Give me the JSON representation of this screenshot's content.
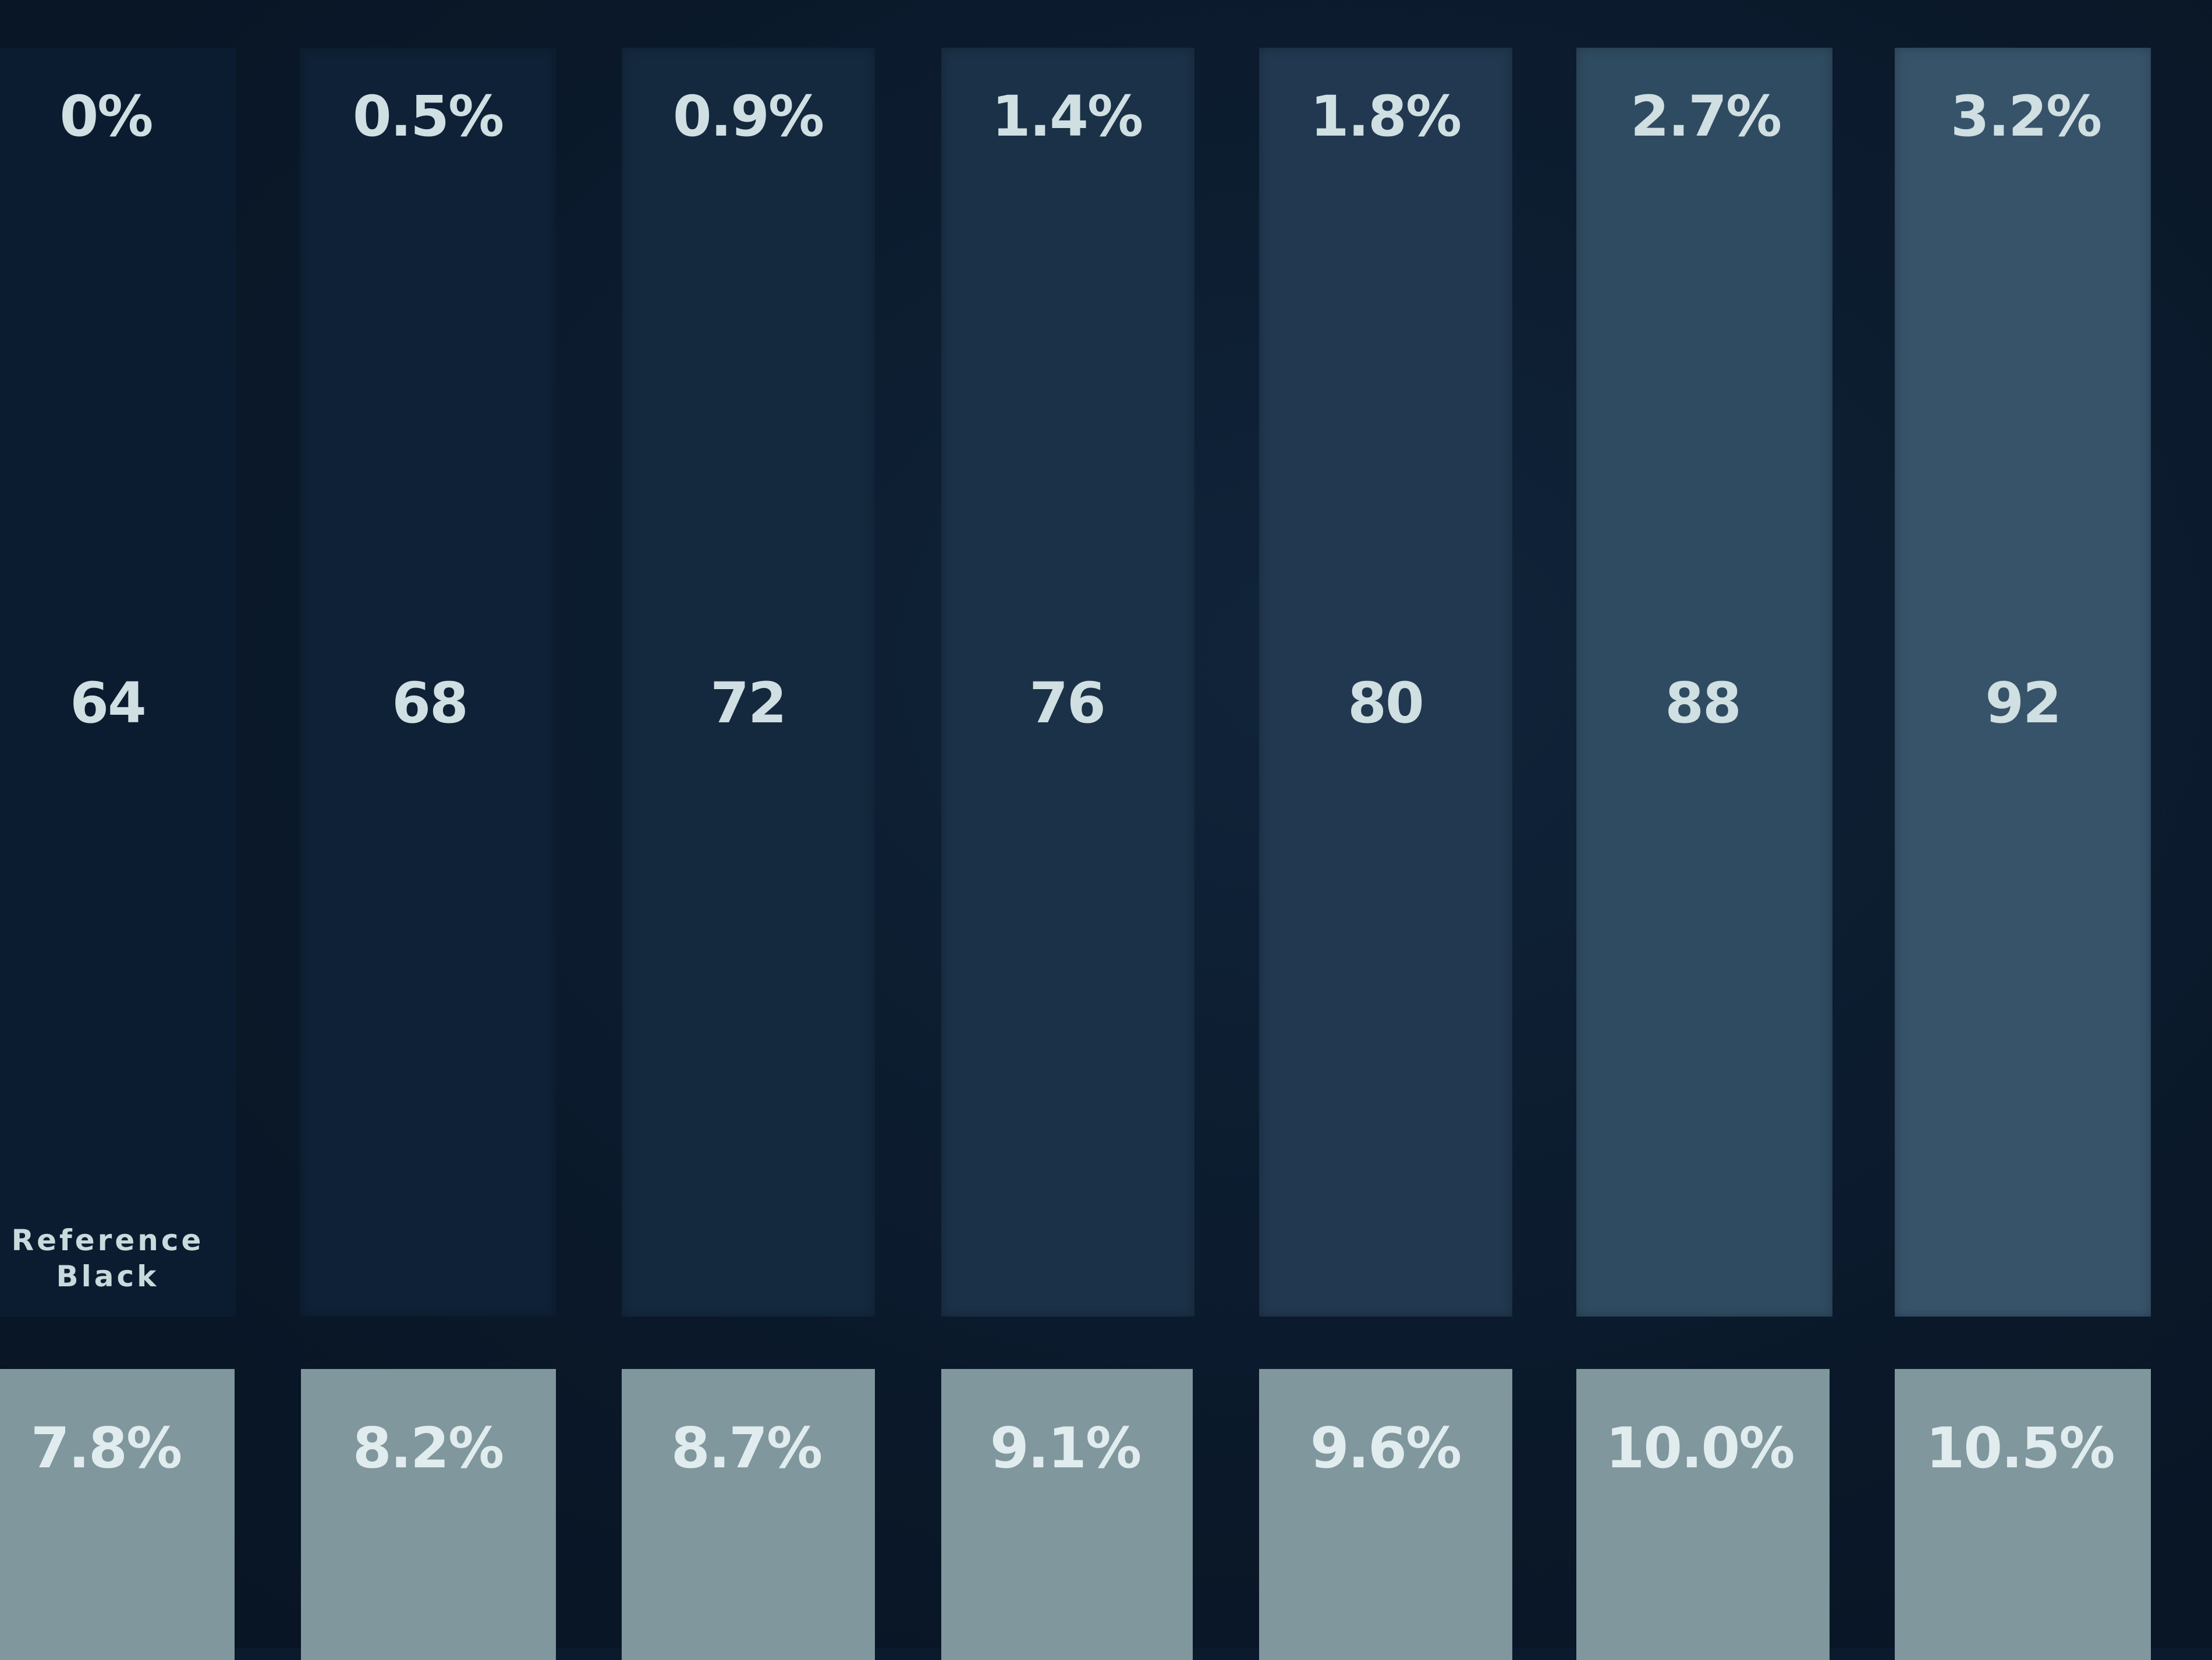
{
  "columns": [
    {
      "top": "0%",
      "mid": "64",
      "bottom": "7.8%",
      "color": "#0c1c30"
    },
    {
      "top": "0.5%",
      "mid": "68",
      "bottom": "8.2%",
      "color": "#0f2136"
    },
    {
      "top": "0.9%",
      "mid": "72",
      "bottom": "8.7%",
      "color": "#14283e"
    },
    {
      "top": "1.4%",
      "mid": "76",
      "bottom": "9.1%",
      "color": "#1b3147"
    },
    {
      "top": "1.8%",
      "mid": "80",
      "bottom": "9.6%",
      "color": "#213850"
    },
    {
      "top": "2.7%",
      "mid": "88",
      "bottom": "10.0%",
      "color": "#2f4b61"
    },
    {
      "top": "3.2%",
      "mid": "92",
      "bottom": "10.5%",
      "color": "#37536a"
    }
  ],
  "reference_label": "Reference\nBlack",
  "colors": {
    "background": "#0b1a2c",
    "swatch": "#7f979d",
    "text": "#cfdfe2"
  }
}
